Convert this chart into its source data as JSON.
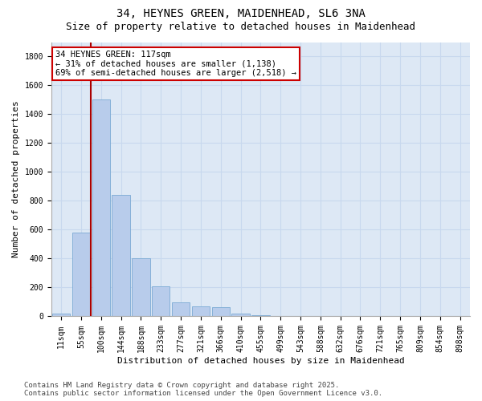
{
  "title_line1": "34, HEYNES GREEN, MAIDENHEAD, SL6 3NA",
  "title_line2": "Size of property relative to detached houses in Maidenhead",
  "xlabel": "Distribution of detached houses by size in Maidenhead",
  "ylabel": "Number of detached properties",
  "categories": [
    "11sqm",
    "55sqm",
    "100sqm",
    "144sqm",
    "188sqm",
    "233sqm",
    "277sqm",
    "321sqm",
    "366sqm",
    "410sqm",
    "455sqm",
    "499sqm",
    "543sqm",
    "588sqm",
    "632sqm",
    "676sqm",
    "721sqm",
    "765sqm",
    "809sqm",
    "854sqm",
    "898sqm"
  ],
  "values": [
    20,
    580,
    1500,
    840,
    400,
    210,
    95,
    70,
    65,
    20,
    10,
    0,
    0,
    0,
    0,
    0,
    0,
    0,
    0,
    0,
    0
  ],
  "bar_color": "#b8cceb",
  "bar_edge_color": "#7baad4",
  "vline_color": "#aa0000",
  "annotation_text": "34 HEYNES GREEN: 117sqm\n← 31% of detached houses are smaller (1,138)\n69% of semi-detached houses are larger (2,518) →",
  "annotation_box_edgecolor": "#cc0000",
  "ylim": [
    0,
    1900
  ],
  "yticks": [
    0,
    200,
    400,
    600,
    800,
    1000,
    1200,
    1400,
    1600,
    1800
  ],
  "grid_color": "#c8d8ee",
  "background_color": "#dde8f5",
  "footer_text": "Contains HM Land Registry data © Crown copyright and database right 2025.\nContains public sector information licensed under the Open Government Licence v3.0.",
  "title_fontsize": 10,
  "subtitle_fontsize": 9,
  "annotation_fontsize": 7.5,
  "footer_fontsize": 6.5,
  "axis_label_fontsize": 8,
  "tick_fontsize": 7
}
